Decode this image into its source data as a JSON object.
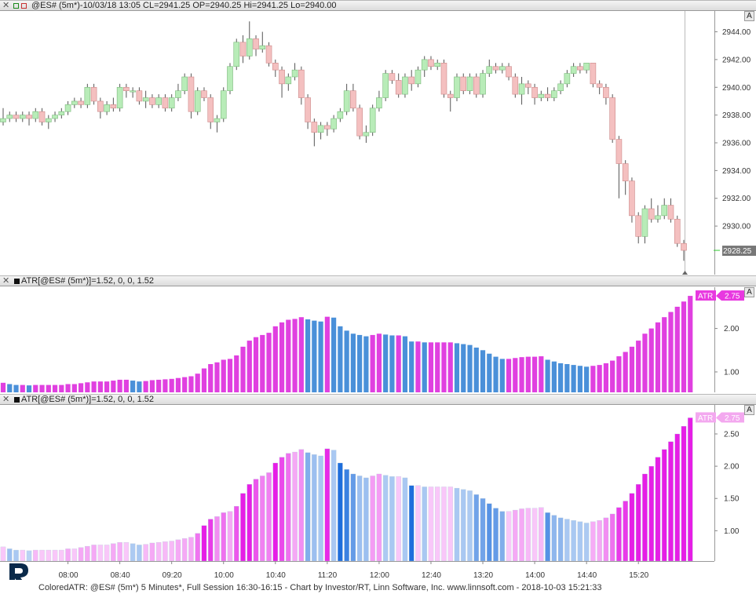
{
  "price_panel": {
    "title": "@ES# (5m*)-10/03/18 13:05 CL=2941.25 OP=2940.25 Hi=2941.25 Lo=2940.00",
    "a_button": "A",
    "last_price_label": "2928.25"
  },
  "atr_panel_1": {
    "title": "ATR[@ES# (5m*)]=1.52, 0, 0, 1.52",
    "a_button": "A",
    "marker_label": "ATR",
    "marker_value": "2.75"
  },
  "atr_panel_2": {
    "title": "ATR[@ES# (5m*)]=1.52, 0, 0, 1.52",
    "a_button": "A",
    "marker_label": "ATR",
    "marker_value": "2.75"
  },
  "footer": {
    "text": "ColoredATR: @ES# (5m*) 5 Minutes*, Full Session 16:30-16:15 - Chart by Investor/RT, Linn Software, Inc. www.linnsoft.com - 2018-10-03 15:21:33"
  },
  "colors": {
    "up_candle": "#b8ecb8",
    "down_candle": "#f4c0c0",
    "atr_magenta": "#e040e0",
    "atr_blue": "#4a90d9",
    "last_price_bg": "#777777"
  },
  "chart_data": [
    {
      "type": "candlestick",
      "symbol": "@ES# (5m*)",
      "ylim": [
        2926.5,
        2945.5
      ],
      "y_ticks": [
        "2944.00",
        "2942.00",
        "2940.00",
        "2938.00",
        "2936.00",
        "2934.00",
        "2932.00",
        "2930.00"
      ],
      "y_tick_values": [
        2944,
        2942,
        2940,
        2938,
        2936,
        2934,
        2932,
        2930
      ],
      "candles": [
        [
          2937.5,
          2937.75,
          2938.5,
          2937.25
        ],
        [
          2937.75,
          2938.0,
          2938.25,
          2937.5
        ],
        [
          2938.0,
          2937.75,
          2938.25,
          2937.5
        ],
        [
          2937.75,
          2938.0,
          2938.25,
          2937.5
        ],
        [
          2938.0,
          2937.75,
          2938.25,
          2937.25
        ],
        [
          2937.75,
          2938.25,
          2938.5,
          2937.5
        ],
        [
          2938.25,
          2937.5,
          2938.5,
          2937.25
        ],
        [
          2937.5,
          2937.75,
          2938.0,
          2937.0
        ],
        [
          2937.75,
          2938.0,
          2938.25,
          2937.5
        ],
        [
          2938.0,
          2938.25,
          2938.5,
          2937.75
        ],
        [
          2938.25,
          2938.75,
          2939.0,
          2938.0
        ],
        [
          2938.75,
          2939.0,
          2939.25,
          2938.5
        ],
        [
          2939.0,
          2938.75,
          2939.25,
          2938.5
        ],
        [
          2938.75,
          2940.0,
          2940.25,
          2938.5
        ],
        [
          2940.0,
          2939.0,
          2940.25,
          2938.75
        ],
        [
          2939.0,
          2938.25,
          2939.25,
          2937.75
        ],
        [
          2938.25,
          2938.75,
          2939.0,
          2938.0
        ],
        [
          2938.75,
          2938.5,
          2939.25,
          2938.25
        ],
        [
          2938.5,
          2940.0,
          2940.25,
          2938.25
        ],
        [
          2940.0,
          2939.75,
          2940.25,
          2939.25
        ],
        [
          2939.75,
          2939.75,
          2940.0,
          2939.25
        ],
        [
          2939.75,
          2939.0,
          2940.0,
          2938.75
        ],
        [
          2939.0,
          2939.25,
          2939.75,
          2938.5
        ],
        [
          2939.25,
          2938.75,
          2939.5,
          2938.5
        ],
        [
          2938.75,
          2939.25,
          2939.5,
          2938.5
        ],
        [
          2939.25,
          2938.5,
          2939.5,
          2938.25
        ],
        [
          2938.5,
          2939.25,
          2939.5,
          2938.25
        ],
        [
          2939.25,
          2939.75,
          2940.25,
          2939.0
        ],
        [
          2939.75,
          2940.75,
          2941.0,
          2939.5
        ],
        [
          2940.75,
          2938.25,
          2941.0,
          2937.75
        ],
        [
          2938.25,
          2939.75,
          2940.0,
          2938.0
        ],
        [
          2939.75,
          2939.25,
          2940.0,
          2939.0
        ],
        [
          2939.25,
          2937.5,
          2939.5,
          2937.0
        ],
        [
          2937.5,
          2937.75,
          2938.0,
          2936.75
        ],
        [
          2937.75,
          2939.75,
          2940.0,
          2937.5
        ],
        [
          2939.75,
          2941.5,
          2941.75,
          2939.5
        ],
        [
          2941.5,
          2943.25,
          2943.5,
          2941.25
        ],
        [
          2943.25,
          2942.25,
          2943.75,
          2941.75
        ],
        [
          2942.25,
          2943.5,
          2944.75,
          2942.0
        ],
        [
          2943.5,
          2942.75,
          2943.75,
          2942.25
        ],
        [
          2942.75,
          2943.0,
          2944.0,
          2942.5
        ],
        [
          2943.0,
          2941.75,
          2943.25,
          2941.5
        ],
        [
          2941.75,
          2941.25,
          2942.0,
          2940.75
        ],
        [
          2941.25,
          2940.25,
          2941.5,
          2939.25
        ],
        [
          2940.25,
          2940.75,
          2941.0,
          2939.75
        ],
        [
          2940.75,
          2941.25,
          2941.75,
          2940.5
        ],
        [
          2941.25,
          2939.25,
          2941.5,
          2938.75
        ],
        [
          2939.25,
          2937.5,
          2939.5,
          2937.0
        ],
        [
          2937.5,
          2936.75,
          2937.75,
          2935.75
        ],
        [
          2936.75,
          2937.25,
          2937.5,
          2936.25
        ],
        [
          2937.25,
          2937.0,
          2937.5,
          2936.5
        ],
        [
          2937.0,
          2937.75,
          2938.0,
          2936.75
        ],
        [
          2937.75,
          2938.25,
          2938.5,
          2937.5
        ],
        [
          2938.25,
          2939.75,
          2940.25,
          2938.0
        ],
        [
          2939.75,
          2938.5,
          2940.25,
          2938.25
        ],
        [
          2938.5,
          2936.5,
          2938.75,
          2936.25
        ],
        [
          2936.5,
          2936.75,
          2937.25,
          2936.0
        ],
        [
          2936.75,
          2938.5,
          2938.75,
          2936.5
        ],
        [
          2938.5,
          2939.25,
          2939.75,
          2938.25
        ],
        [
          2939.25,
          2941.0,
          2941.25,
          2939.0
        ],
        [
          2941.0,
          2940.5,
          2941.25,
          2940.25
        ],
        [
          2940.5,
          2939.5,
          2941.0,
          2939.25
        ],
        [
          2939.5,
          2940.75,
          2941.0,
          2939.25
        ],
        [
          2940.75,
          2940.25,
          2941.25,
          2939.75
        ],
        [
          2940.25,
          2941.25,
          2941.5,
          2940.0
        ],
        [
          2941.25,
          2942.0,
          2942.25,
          2940.75
        ],
        [
          2942.0,
          2941.5,
          2942.25,
          2941.25
        ],
        [
          2941.5,
          2941.75,
          2942.0,
          2941.25
        ],
        [
          2941.75,
          2939.5,
          2942.0,
          2939.25
        ],
        [
          2939.5,
          2939.25,
          2939.75,
          2938.25
        ],
        [
          2939.25,
          2940.75,
          2941.0,
          2939.0
        ],
        [
          2940.75,
          2939.75,
          2941.0,
          2939.5
        ],
        [
          2939.75,
          2940.75,
          2941.0,
          2939.5
        ],
        [
          2940.75,
          2939.5,
          2941.0,
          2939.25
        ],
        [
          2939.5,
          2941.0,
          2941.25,
          2939.25
        ],
        [
          2941.0,
          2941.5,
          2942.0,
          2940.75
        ],
        [
          2941.5,
          2941.25,
          2941.75,
          2941.0
        ],
        [
          2941.25,
          2941.5,
          2941.75,
          2941.0
        ],
        [
          2941.5,
          2940.75,
          2941.75,
          2940.5
        ],
        [
          2940.75,
          2939.5,
          2941.0,
          2939.25
        ],
        [
          2939.5,
          2940.25,
          2940.75,
          2938.75
        ],
        [
          2940.25,
          2940.0,
          2940.5,
          2939.5
        ],
        [
          2940.0,
          2939.25,
          2940.25,
          2938.75
        ],
        [
          2939.25,
          2939.5,
          2939.75,
          2939.0
        ],
        [
          2939.5,
          2939.25,
          2940.0,
          2939.0
        ],
        [
          2939.25,
          2939.75,
          2940.0,
          2939.0
        ],
        [
          2939.75,
          2940.25,
          2940.5,
          2939.5
        ],
        [
          2940.25,
          2941.0,
          2941.25,
          2940.0
        ],
        [
          2941.0,
          2941.5,
          2941.75,
          2940.75
        ],
        [
          2941.5,
          2941.25,
          2941.75,
          2941.0
        ],
        [
          2941.25,
          2941.75,
          2941.75,
          2941.0
        ],
        [
          2941.75,
          2940.25,
          2941.75,
          2940.0
        ],
        [
          2940.25,
          2940.0,
          2940.5,
          2939.5
        ],
        [
          2940.0,
          2939.25,
          2940.25,
          2938.75
        ],
        [
          2939.25,
          2936.25,
          2939.5,
          2936.0
        ],
        [
          2936.25,
          2934.5,
          2936.5,
          2932.0
        ],
        [
          2934.5,
          2933.25,
          2934.75,
          2932.25
        ],
        [
          2933.25,
          2930.75,
          2933.5,
          2930.25
        ],
        [
          2930.75,
          2929.25,
          2931.0,
          2928.75
        ],
        [
          2929.25,
          2931.25,
          2931.5,
          2928.75
        ],
        [
          2931.25,
          2930.5,
          2932.0,
          2930.25
        ],
        [
          2930.5,
          2930.75,
          2931.5,
          2930.25
        ],
        [
          2930.75,
          2931.5,
          2932.0,
          2930.5
        ],
        [
          2931.5,
          2930.5,
          2932.0,
          2930.25
        ],
        [
          2930.5,
          2928.75,
          2930.75,
          2928.5
        ],
        [
          2928.75,
          2928.25,
          2929.0,
          2927.5
        ]
      ]
    },
    {
      "type": "bar",
      "title": "ATR[@ES# (5m*)]=1.52, 0, 0, 1.52",
      "ylim": [
        0.53,
        2.95
      ],
      "y_ticks": [
        "2.00",
        "1.00"
      ],
      "y_tick_values": [
        2.0,
        1.0
      ],
      "values": [
        0.75,
        0.72,
        0.7,
        0.7,
        0.69,
        0.7,
        0.7,
        0.7,
        0.7,
        0.7,
        0.72,
        0.72,
        0.74,
        0.76,
        0.78,
        0.78,
        0.78,
        0.8,
        0.82,
        0.82,
        0.8,
        0.78,
        0.79,
        0.81,
        0.82,
        0.83,
        0.84,
        0.86,
        0.88,
        0.9,
        0.96,
        1.08,
        1.18,
        1.22,
        1.28,
        1.3,
        1.38,
        1.58,
        1.72,
        1.8,
        1.85,
        1.9,
        2.05,
        2.14,
        2.2,
        2.22,
        2.26,
        2.21,
        2.18,
        2.16,
        2.27,
        2.25,
        2.05,
        1.95,
        1.88,
        1.85,
        1.82,
        1.85,
        1.88,
        1.86,
        1.84,
        1.84,
        1.82,
        1.7,
        1.7,
        1.68,
        1.68,
        1.68,
        1.68,
        1.68,
        1.66,
        1.64,
        1.62,
        1.56,
        1.5,
        1.42,
        1.35,
        1.3,
        1.3,
        1.32,
        1.34,
        1.35,
        1.35,
        1.36,
        1.28,
        1.24,
        1.2,
        1.18,
        1.16,
        1.14,
        1.12,
        1.14,
        1.16,
        1.2,
        1.26,
        1.36,
        1.46,
        1.58,
        1.72,
        1.88,
        2.0,
        2.14,
        2.26,
        2.38,
        2.5,
        2.62,
        2.75
      ]
    },
    {
      "type": "bar",
      "title": "ATR[@ES# (5m*)]=1.52, 0, 0, 1.52",
      "ylim": [
        0.53,
        2.95
      ],
      "y_ticks": [
        "2.50",
        "2.00",
        "1.50",
        "1.00"
      ],
      "y_tick_values": [
        2.5,
        2.0,
        1.5,
        1.0
      ],
      "x_ticks": [
        "08:00",
        "08:40",
        "09:20",
        "10:00",
        "10:40",
        "11:20",
        "12:00",
        "12:40",
        "13:20",
        "14:00",
        "14:40",
        "15:20"
      ],
      "values": [
        0.75,
        0.72,
        0.7,
        0.7,
        0.69,
        0.7,
        0.7,
        0.7,
        0.7,
        0.7,
        0.72,
        0.72,
        0.74,
        0.76,
        0.78,
        0.78,
        0.78,
        0.8,
        0.82,
        0.82,
        0.8,
        0.78,
        0.79,
        0.81,
        0.82,
        0.83,
        0.84,
        0.86,
        0.88,
        0.9,
        0.96,
        1.08,
        1.18,
        1.22,
        1.28,
        1.3,
        1.38,
        1.58,
        1.72,
        1.8,
        1.85,
        1.9,
        2.05,
        2.14,
        2.2,
        2.22,
        2.26,
        2.21,
        2.18,
        2.16,
        2.27,
        2.25,
        2.05,
        1.95,
        1.88,
        1.85,
        1.82,
        1.85,
        1.88,
        1.86,
        1.84,
        1.84,
        1.82,
        1.7,
        1.7,
        1.68,
        1.68,
        1.68,
        1.68,
        1.68,
        1.66,
        1.64,
        1.62,
        1.56,
        1.5,
        1.42,
        1.35,
        1.3,
        1.3,
        1.32,
        1.34,
        1.35,
        1.35,
        1.36,
        1.28,
        1.24,
        1.2,
        1.18,
        1.16,
        1.14,
        1.12,
        1.14,
        1.16,
        1.2,
        1.26,
        1.36,
        1.46,
        1.58,
        1.72,
        1.88,
        2.0,
        2.14,
        2.26,
        2.38,
        2.5,
        2.62,
        2.75
      ]
    }
  ]
}
